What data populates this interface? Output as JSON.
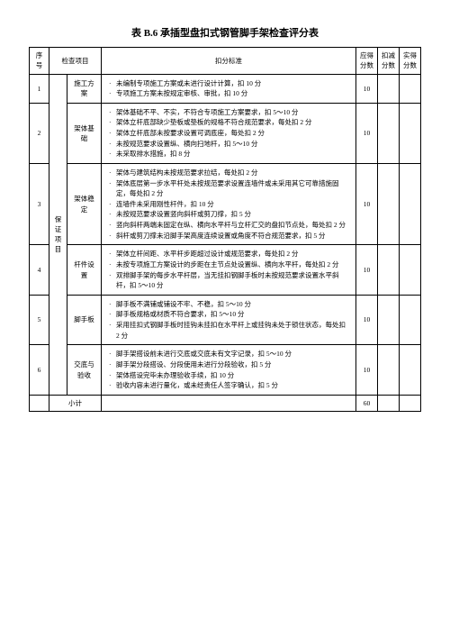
{
  "title_fontsize": 11,
  "body_fontsize": 7.5,
  "title": "表 B.6 承插型盘扣式钢管脚手架检查评分表",
  "headers": {
    "seq": "序号",
    "item": "检查项目",
    "criteria": "扣分标准",
    "should": "应得分数",
    "deduct": "扣减分数",
    "actual": "实得分数"
  },
  "category": "保证项目",
  "rows": [
    {
      "seq": "1",
      "item": "施工方案",
      "bullets": [
        "未编制专项施工方案或未进行设计计算，扣 10 分",
        "专项施工方案未按规定审核、审批，扣 10 分"
      ],
      "score": "10"
    },
    {
      "seq": "2",
      "item": "架体基础",
      "bullets": [
        "架体基础不平、不实，不符合专项施工方案要求，扣 5～10 分",
        "架体立杆底部缺少垫板或垫板的规格不符合规范要求，每处扣 2 分",
        "架体立杆底部未按要求设置可调底座，每处扣 2 分",
        "未按规范要求设置纵、横向扫地杆，扣 5～10 分",
        "未采取排水措施，扣 8 分"
      ],
      "score": "10"
    },
    {
      "seq": "3",
      "item": "架体稳定",
      "bullets": [
        "架体与建筑结构未按规范要求拉结，每处扣 2 分",
        "架体底层第一步水平杆处未按规范要求设置连墙件或未采用其它可靠措施固定，每处扣 2 分",
        "连墙件未采用刚性杆件，扣 10 分",
        "未按规范要求设置竖向斜杆或剪刀撑，扣 5 分",
        "竖向斜杆两端未固定在纵、横向水平杆与立杆汇交的盘扣节点处，每处扣 2 分",
        "斜杆或剪刀撑未沿脚手架高度连续设置或角度不符合规范要求，扣 5 分"
      ],
      "score": "10"
    },
    {
      "seq": "4",
      "item": "杆件设置",
      "bullets": [
        "架体立杆间距、水平杆步距超过设计或规范要求，每处扣 2 分",
        "未按专项施工方案设计的步距在主节点处设置纵、横向水平杆，每处扣 2 分",
        "双排脚手架的每步水平杆层，当无挂扣钢脚手板时未按规范要求设置水平斜杆，扣 5～10 分"
      ],
      "score": "10"
    },
    {
      "seq": "5",
      "item": "脚手板",
      "bullets": [
        "脚手板不满铺或铺设不牢、不稳，扣 5～10 分",
        "脚手板规格或材质不符合要求，扣 5～10 分",
        "采用挂扣式钢脚手板时挂钩未挂扣在水平杆上或挂钩未处于锁住状态，每处扣 2 分"
      ],
      "score": "10"
    },
    {
      "seq": "6",
      "item": "交底与验收",
      "bullets": [
        "脚手架搭设前未进行交底或交底未有文字记录，扣 5～10 分",
        "脚手架分段搭设、分段使用未进行分段验收，扣 5 分",
        "架体搭设完毕未办理验收手续，扣 10 分",
        "验收内容未进行量化，或未经责任人签字确认，扣 5 分"
      ],
      "score": "10"
    }
  ],
  "subtotal_label": "小计",
  "subtotal_score": "60"
}
